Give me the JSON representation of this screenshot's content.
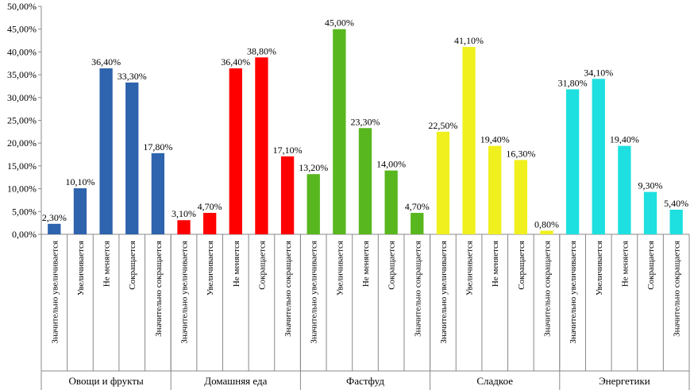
{
  "chart_data": {
    "type": "bar",
    "title": "",
    "xlabel": "",
    "ylabel": "",
    "ylim": [
      0,
      50
    ],
    "y_tick_labels": [
      "0,00%",
      "5,00%",
      "10,00%",
      "15,00%",
      "20,00%",
      "25,00%",
      "30,00%",
      "35,00%",
      "40,00%",
      "45,00%",
      "50,00%"
    ],
    "grid": false,
    "legend": "none",
    "groups": [
      {
        "name": "Овощи и фрукты",
        "color": "#2e63ad",
        "categories": [
          "Значительно увеличивается",
          "Увеличивается",
          "Не меняется",
          "Сокращается",
          "Значительно сокращается"
        ],
        "values": [
          2.3,
          10.1,
          36.4,
          33.3,
          17.8
        ],
        "labels": [
          "2,30%",
          "10,10%",
          "36,40%",
          "33,30%",
          "17,80%"
        ]
      },
      {
        "name": "Домашняя еда",
        "color": "#ff0000",
        "categories": [
          "Значительно увеличивается",
          "Увеличивается",
          "Не меняется",
          "Сокращается",
          "Значительно сокращается"
        ],
        "values": [
          3.1,
          4.7,
          36.4,
          38.8,
          17.1
        ],
        "labels": [
          "3,10%",
          "4,70%",
          "36,40%",
          "38,80%",
          "17,10%"
        ]
      },
      {
        "name": "Фастфуд",
        "color": "#58b71e",
        "categories": [
          "Значительно увеличивается",
          "Увеличивается",
          "Не меняется",
          "Сокращается",
          "Значительно сокращается"
        ],
        "values": [
          13.2,
          45.0,
          23.3,
          14.0,
          4.7
        ],
        "labels": [
          "13,20%",
          "45,00%",
          "23,30%",
          "14,00%",
          "4,70%"
        ]
      },
      {
        "name": "Сладкое",
        "color": "#f0f01e",
        "categories": [
          "Значительно увеличивается",
          "Увеличивается",
          "Не меняется",
          "Сокращается",
          "Значительно сокращается"
        ],
        "values": [
          22.5,
          41.1,
          19.4,
          16.3,
          0.8
        ],
        "labels": [
          "22,50%",
          "41,10%",
          "19,40%",
          "16,30%",
          "0,80%"
        ]
      },
      {
        "name": "Энергетики",
        "color": "#1ee0e0",
        "categories": [
          "Значительно увеличивается",
          "Увеличивается",
          "Не меняется",
          "Сокращается",
          "Значительно сокращается"
        ],
        "values": [
          31.8,
          34.1,
          19.4,
          9.3,
          5.4
        ],
        "labels": [
          "31,80%",
          "34,10%",
          "19,40%",
          "9,30%",
          "5,40%"
        ]
      }
    ]
  }
}
